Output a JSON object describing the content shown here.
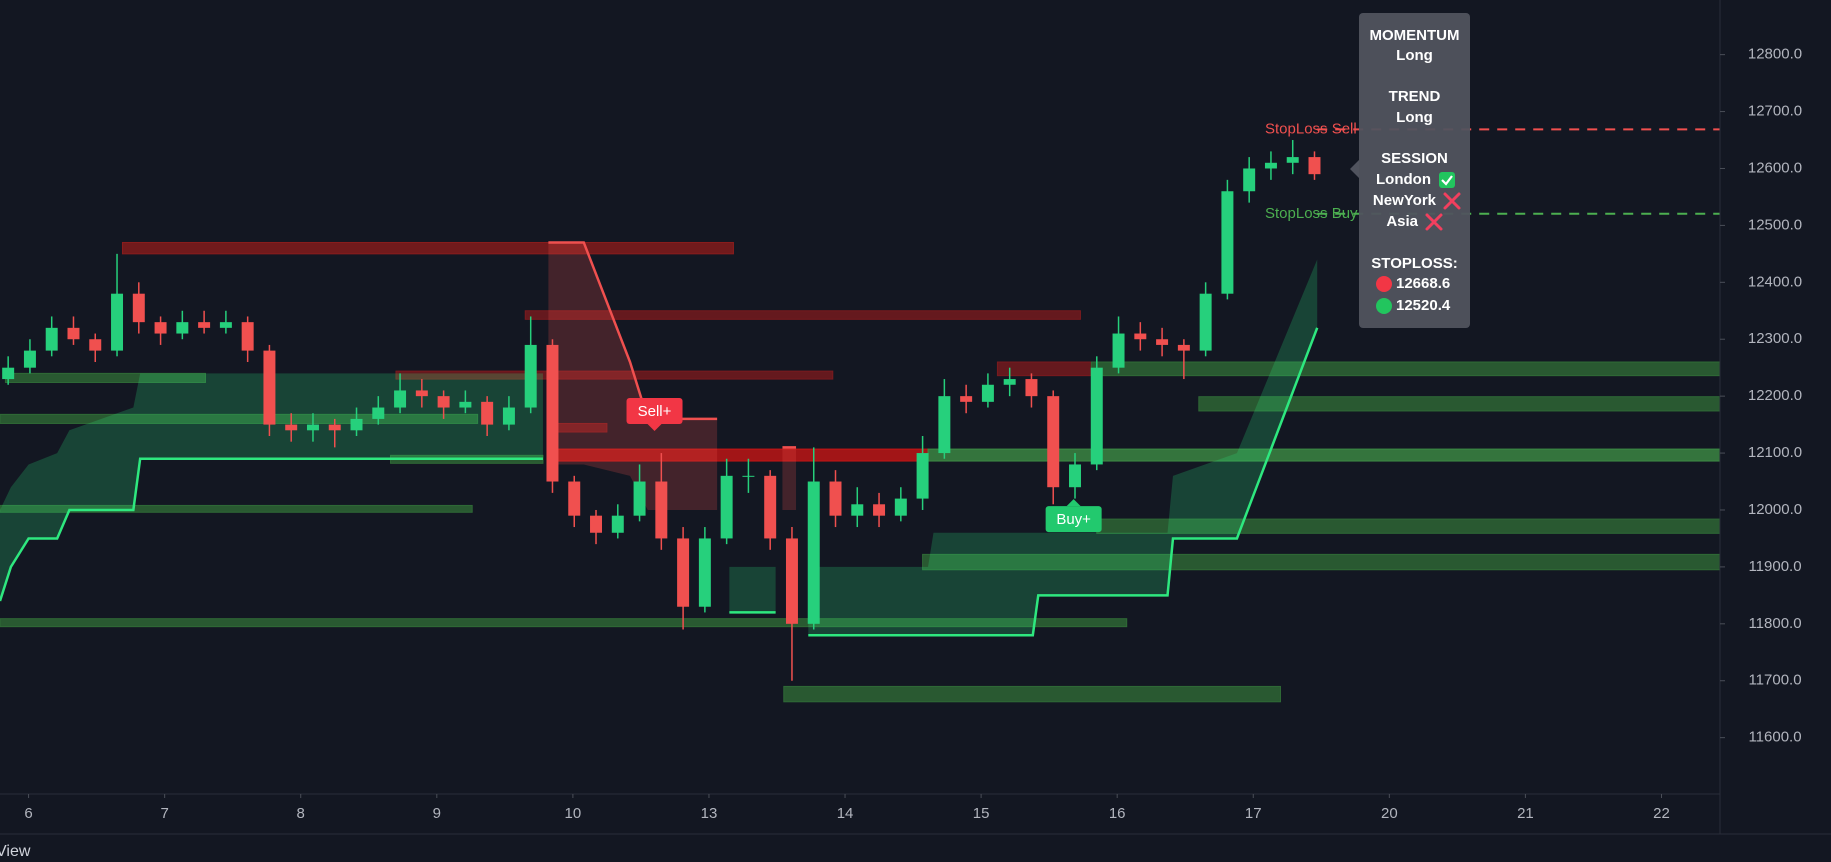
{
  "chart_data": {
    "type": "candlestick",
    "xlim": [
      -0.21,
      12.43
    ],
    "ylim": [
      11501,
      12896
    ],
    "grid": false,
    "xticks": [
      {
        "value": 0,
        "label": "6"
      },
      {
        "value": 1,
        "label": "7"
      },
      {
        "value": 2,
        "label": "8"
      },
      {
        "value": 3,
        "label": "9"
      },
      {
        "value": 4,
        "label": "10"
      },
      {
        "value": 5,
        "label": "13"
      },
      {
        "value": 6,
        "label": "14"
      },
      {
        "value": 7,
        "label": "15"
      },
      {
        "value": 8,
        "label": "16"
      },
      {
        "value": 9,
        "label": "17"
      },
      {
        "value": 10,
        "label": "20"
      },
      {
        "value": 11,
        "label": "21"
      },
      {
        "value": 12,
        "label": "22"
      }
    ],
    "yticks": [
      {
        "value": 11600,
        "label": "11600.0"
      },
      {
        "value": 11700,
        "label": "11700.0"
      },
      {
        "value": 11800,
        "label": "11800.0"
      },
      {
        "value": 11900,
        "label": "11900.0"
      },
      {
        "value": 12000,
        "label": "12000.0"
      },
      {
        "value": 12100,
        "label": "12100.0"
      },
      {
        "value": 12200,
        "label": "12200.0"
      },
      {
        "value": 12300,
        "label": "12300.0"
      },
      {
        "value": 12400,
        "label": "12400.0"
      },
      {
        "value": 12500,
        "label": "12500.0"
      },
      {
        "value": 12600,
        "label": "12600.0"
      },
      {
        "value": 12700,
        "label": "12700.0"
      },
      {
        "value": 12800,
        "label": "12800.0"
      }
    ],
    "up_color": "#26d07c",
    "down_color": "#f0504f",
    "x": [
      -0.15,
      0.01,
      0.17,
      0.33,
      0.49,
      0.65,
      0.81,
      0.97,
      1.13,
      1.29,
      1.45,
      1.61,
      1.77,
      1.93,
      2.09,
      2.25,
      2.41,
      2.57,
      2.73,
      2.89,
      3.05,
      3.21,
      3.37,
      3.53,
      3.69,
      3.85,
      4.01,
      4.17,
      4.33,
      4.49,
      4.65,
      4.81,
      4.97,
      5.13,
      5.29,
      5.45,
      5.61,
      5.77,
      5.93,
      6.09,
      6.25,
      6.41,
      6.57,
      6.73,
      6.89,
      7.05,
      7.21,
      7.37,
      7.53,
      7.69,
      7.85,
      8.01,
      8.17,
      8.33,
      8.49,
      8.65,
      8.81,
      8.97,
      9.13,
      9.29,
      9.45
    ],
    "ohlc": [
      [
        12230,
        12270,
        12220,
        12250
      ],
      [
        12250,
        12300,
        12240,
        12280
      ],
      [
        12280,
        12340,
        12270,
        12320
      ],
      [
        12320,
        12340,
        12290,
        12300
      ],
      [
        12300,
        12310,
        12260,
        12280
      ],
      [
        12280,
        12450,
        12270,
        12380
      ],
      [
        12380,
        12400,
        12310,
        12330
      ],
      [
        12330,
        12340,
        12290,
        12310
      ],
      [
        12310,
        12350,
        12300,
        12330
      ],
      [
        12330,
        12350,
        12310,
        12320
      ],
      [
        12320,
        12350,
        12310,
        12330
      ],
      [
        12330,
        12340,
        12260,
        12280
      ],
      [
        12280,
        12290,
        12130,
        12150
      ],
      [
        12150,
        12170,
        12120,
        12140
      ],
      [
        12140,
        12170,
        12120,
        12150
      ],
      [
        12150,
        12160,
        12110,
        12140
      ],
      [
        12140,
        12180,
        12130,
        12160
      ],
      [
        12160,
        12200,
        12150,
        12180
      ],
      [
        12180,
        12240,
        12170,
        12210
      ],
      [
        12210,
        12230,
        12180,
        12200
      ],
      [
        12200,
        12210,
        12160,
        12180
      ],
      [
        12180,
        12210,
        12170,
        12190
      ],
      [
        12190,
        12200,
        12130,
        12150
      ],
      [
        12150,
        12200,
        12140,
        12180
      ],
      [
        12180,
        12340,
        12170,
        12290
      ],
      [
        12290,
        12300,
        12030,
        12050
      ],
      [
        12050,
        12060,
        11970,
        11990
      ],
      [
        11990,
        12000,
        11940,
        11960
      ],
      [
        11960,
        12010,
        11950,
        11990
      ],
      [
        11990,
        12080,
        11980,
        12050
      ],
      [
        12050,
        12100,
        11930,
        11950
      ],
      [
        11950,
        11970,
        11790,
        11830
      ],
      [
        11830,
        11970,
        11820,
        11950
      ],
      [
        11950,
        12090,
        11940,
        12060
      ],
      [
        12060,
        12090,
        12030,
        12060
      ],
      [
        12060,
        12070,
        11930,
        11950
      ],
      [
        11950,
        11970,
        11700,
        11800
      ],
      [
        11800,
        12110,
        11790,
        12050
      ],
      [
        12050,
        12070,
        11970,
        11990
      ],
      [
        11990,
        12040,
        11970,
        12010
      ],
      [
        12010,
        12030,
        11970,
        11990
      ],
      [
        11990,
        12040,
        11980,
        12020
      ],
      [
        12020,
        12130,
        12000,
        12100
      ],
      [
        12100,
        12230,
        12090,
        12200
      ],
      [
        12200,
        12220,
        12170,
        12190
      ],
      [
        12190,
        12240,
        12180,
        12220
      ],
      [
        12220,
        12250,
        12200,
        12230
      ],
      [
        12230,
        12240,
        12180,
        12200
      ],
      [
        12200,
        12210,
        12010,
        12040
      ],
      [
        12040,
        12100,
        12020,
        12080
      ],
      [
        12080,
        12270,
        12070,
        12250
      ],
      [
        12250,
        12340,
        12240,
        12310
      ],
      [
        12310,
        12330,
        12280,
        12300
      ],
      [
        12300,
        12320,
        12270,
        12290
      ],
      [
        12290,
        12300,
        12230,
        12280
      ],
      [
        12280,
        12400,
        12270,
        12380
      ],
      [
        12380,
        12580,
        12370,
        12560
      ],
      [
        12560,
        12620,
        12540,
        12600
      ],
      [
        12600,
        12630,
        12580,
        12610
      ],
      [
        12610,
        12650,
        12590,
        12620
      ],
      [
        12620,
        12630,
        12580,
        12590
      ]
    ],
    "zones": [
      {
        "x": [
          0.69,
          5.18
        ],
        "y": [
          12450,
          12470
        ],
        "color": "#8a1c1c"
      },
      {
        "x": [
          3.65,
          7.73
        ],
        "y": [
          12335,
          12350
        ],
        "color": "#7a1a1e"
      },
      {
        "x": [
          2.7,
          5.91
        ],
        "y": [
          12230,
          12244
        ],
        "color": "#7a1a1e"
      },
      {
        "x": [
          3.82,
          4.25
        ],
        "y": [
          12137,
          12152
        ],
        "color": "#7a1a1e"
      },
      {
        "x": [
          3.82,
          6.61
        ],
        "y": [
          12086,
          12107
        ],
        "color": "#c71515"
      },
      {
        "x": [
          7.12,
          7.81
        ],
        "y": [
          12236,
          12260
        ],
        "color": "#7a1a1e"
      },
      {
        "x": [
          -0.17,
          1.3
        ],
        "y": [
          12224,
          12240
        ],
        "color": "#2f6a36"
      },
      {
        "x": [
          -0.21,
          3.3
        ],
        "y": [
          12152,
          12168
        ],
        "color": "#2f6a36"
      },
      {
        "x": [
          2.66,
          3.78
        ],
        "y": [
          12082,
          12096
        ],
        "color": "#2f6a36"
      },
      {
        "x": [
          -0.21,
          3.26
        ],
        "y": [
          11996,
          12008
        ],
        "color": "#2f6a36"
      },
      {
        "x": [
          -0.21,
          8.07
        ],
        "y": [
          11795,
          11809
        ],
        "color": "#2f6a36"
      },
      {
        "x": [
          5.55,
          9.2
        ],
        "y": [
          11663,
          11690
        ],
        "color": "#2f6a36"
      },
      {
        "x": [
          6.57,
          12.43
        ],
        "y": [
          11895,
          11922
        ],
        "color": "#2f6a36"
      },
      {
        "x": [
          7.85,
          12.43
        ],
        "y": [
          11959,
          11984
        ],
        "color": "#2f6a36"
      },
      {
        "x": [
          8.6,
          12.43
        ],
        "y": [
          12174,
          12199
        ],
        "color": "#2f6a36"
      },
      {
        "x": [
          7.81,
          12.43
        ],
        "y": [
          12236,
          12260
        ],
        "color": "#2f6a36"
      },
      {
        "x": [
          6.61,
          12.43
        ],
        "y": [
          12086,
          12107
        ],
        "color": "#3d8c45"
      }
    ],
    "stops": [
      {
        "color": "#2ee87f",
        "x": [
          -0.21,
          -0.13,
          0,
          0.21,
          0.3,
          0.77,
          0.82,
          3.78
        ],
        "values": [
          11840,
          11900,
          11950,
          11950,
          12000,
          12000,
          12090,
          12090
        ],
        "cloud": [
          12000,
          12040,
          12080,
          12100,
          12140,
          12180,
          12240,
          12240
        ]
      },
      {
        "color": "#f0504f",
        "x": [
          3.82,
          4.08,
          4.42,
          4.55,
          5.06
        ],
        "values": [
          12470,
          12470,
          12260,
          12160,
          12160
        ],
        "cloud": [
          12080,
          12080,
          12060,
          12000,
          12000
        ]
      },
      {
        "color": "#2ee87f",
        "x": [
          5.15,
          5.49
        ],
        "values": [
          11820,
          11820
        ],
        "cloud": [
          11900,
          11900
        ]
      },
      {
        "color": "#f0504f",
        "x": [
          5.54,
          5.64
        ],
        "values": [
          12110,
          12110
        ],
        "cloud": [
          12000,
          12000
        ]
      },
      {
        "color": "#2ee87f",
        "x": [
          5.73,
          6.61,
          6.65,
          7.38,
          7.42,
          8.37,
          8.41,
          8.88,
          9.47
        ],
        "values": [
          11780,
          11780,
          11780,
          11780,
          11850,
          11850,
          11950,
          11950,
          12320
        ],
        "cloud": [
          11900,
          11900,
          11960,
          11960,
          11960,
          11960,
          12060,
          12100,
          12440
        ]
      }
    ],
    "stoploss": {
      "x": [
        9.47,
        12.43
      ],
      "sell": {
        "label": "StopLoss Sell",
        "value": 12668.6,
        "color": "#f0504f"
      },
      "buy": {
        "label": "StopLoss Buy",
        "value": 12520.4,
        "color": "#4caf50"
      }
    },
    "signals": [
      {
        "label": "Sell+",
        "x": 4.6,
        "value": 12174,
        "color": "#f23645",
        "direction": "down"
      },
      {
        "label": "Buy+",
        "x": 7.68,
        "value": 11984,
        "color": "#22c96e",
        "direction": "up"
      }
    ],
    "panel": {
      "momentum_title": "MOMENTUM",
      "momentum": "Long",
      "trend_title": "TREND",
      "trend": "Long",
      "session_title": "SESSION",
      "sessions": [
        {
          "name": "London",
          "active": true
        },
        {
          "name": "NewYork",
          "active": false
        },
        {
          "name": "Asia",
          "active": false
        }
      ],
      "stoploss_title": "STOPLOSS:"
    },
    "footer": "View"
  }
}
